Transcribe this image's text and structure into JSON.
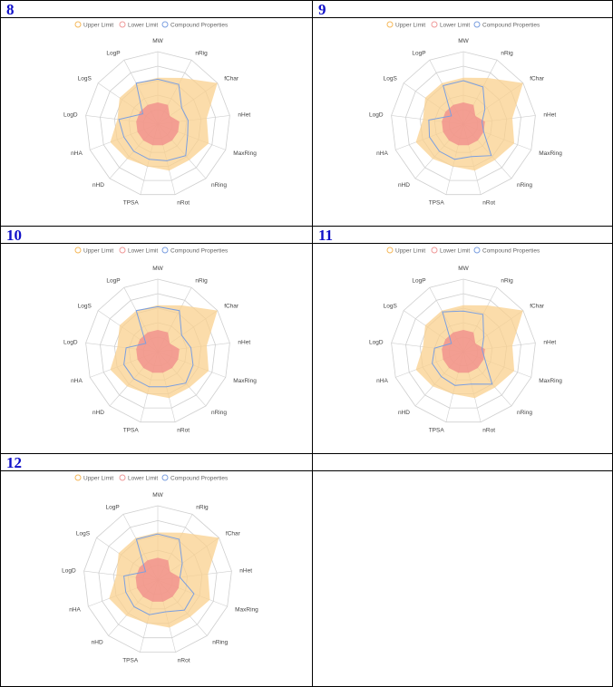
{
  "legend": {
    "upper": "Upper Limit",
    "lower": "Lower Limit",
    "compound": "Compound Properties"
  },
  "colors": {
    "upper_fill": "#f9d08e",
    "upper_stroke": "#f5b85a",
    "lower_fill": "#f08a8a",
    "lower_stroke": "#ef9a9a",
    "compound_stroke": "#7b9fe0",
    "grid": "#cfcfcf",
    "cell_number": "#1010c8"
  },
  "chart_data": [
    {
      "type": "radar",
      "label": "8",
      "axes": [
        "MW",
        "nRig",
        "fChar",
        "nHet",
        "MaxRing",
        "nRing",
        "nRot",
        "TPSA",
        "nHD",
        "nHA",
        "LogD",
        "LogS",
        "LogP"
      ],
      "series": [
        {
          "name": "Upper Limit",
          "values": [
            0.64,
            0.72,
            1.0,
            0.68,
            0.75,
            0.66,
            0.66,
            0.6,
            0.64,
            0.7,
            0.56,
            0.64,
            0.64
          ]
        },
        {
          "name": "Lower Limit",
          "values": [
            0.3,
            0.3,
            0.2,
            0.3,
            0.3,
            0.3,
            0.3,
            0.3,
            0.3,
            0.3,
            0.3,
            0.3,
            0.3
          ]
        },
        {
          "name": "Compound Properties",
          "values": [
            0.62,
            0.62,
            0.4,
            0.42,
            0.44,
            0.58,
            0.52,
            0.5,
            0.5,
            0.5,
            0.54,
            0.25,
            0.64
          ]
        }
      ]
    },
    {
      "type": "radar",
      "label": "9",
      "axes": [
        "MW",
        "nRig",
        "fChar",
        "nHet",
        "MaxRing",
        "nRing",
        "nRot",
        "TPSA",
        "nHD",
        "nHA",
        "LogD",
        "LogS",
        "LogP"
      ],
      "series": [
        {
          "name": "Upper Limit",
          "values": [
            0.64,
            0.72,
            1.0,
            0.68,
            0.75,
            0.66,
            0.66,
            0.6,
            0.64,
            0.7,
            0.56,
            0.64,
            0.64
          ]
        },
        {
          "name": "Lower Limit",
          "values": [
            0.3,
            0.3,
            0.2,
            0.3,
            0.3,
            0.3,
            0.3,
            0.3,
            0.3,
            0.3,
            0.3,
            0.3,
            0.3
          ]
        },
        {
          "name": "Compound Properties",
          "values": [
            0.6,
            0.58,
            0.36,
            0.26,
            0.3,
            0.58,
            0.46,
            0.5,
            0.5,
            0.5,
            0.48,
            0.2,
            0.6
          ]
        }
      ]
    },
    {
      "type": "radar",
      "label": "10",
      "axes": [
        "MW",
        "nRig",
        "fChar",
        "nHet",
        "MaxRing",
        "nRing",
        "nRot",
        "TPSA",
        "nHD",
        "nHA",
        "LogD",
        "LogS",
        "LogP"
      ],
      "series": [
        {
          "name": "Upper Limit",
          "values": [
            0.64,
            0.72,
            1.0,
            0.68,
            0.75,
            0.66,
            0.66,
            0.6,
            0.64,
            0.7,
            0.56,
            0.64,
            0.64
          ]
        },
        {
          "name": "Lower Limit",
          "values": [
            0.3,
            0.3,
            0.2,
            0.3,
            0.3,
            0.3,
            0.3,
            0.3,
            0.3,
            0.3,
            0.3,
            0.3,
            0.3
          ]
        },
        {
          "name": "Compound Properties",
          "values": [
            0.62,
            0.64,
            0.4,
            0.46,
            0.52,
            0.58,
            0.5,
            0.5,
            0.5,
            0.5,
            0.44,
            0.2,
            0.64
          ]
        }
      ]
    },
    {
      "type": "radar",
      "label": "11",
      "axes": [
        "MW",
        "nRig",
        "fChar",
        "nHet",
        "MaxRing",
        "nRing",
        "nRot",
        "TPSA",
        "nHD",
        "nHA",
        "LogD",
        "LogS",
        "LogP"
      ],
      "series": [
        {
          "name": "Upper Limit",
          "values": [
            0.64,
            0.72,
            1.0,
            0.68,
            0.75,
            0.66,
            0.66,
            0.6,
            0.64,
            0.7,
            0.56,
            0.64,
            0.64
          ]
        },
        {
          "name": "Lower Limit",
          "values": [
            0.3,
            0.3,
            0.2,
            0.3,
            0.3,
            0.3,
            0.3,
            0.3,
            0.3,
            0.3,
            0.3,
            0.3,
            0.3
          ]
        },
        {
          "name": "Compound Properties",
          "values": [
            0.56,
            0.58,
            0.34,
            0.26,
            0.32,
            0.6,
            0.46,
            0.48,
            0.46,
            0.46,
            0.4,
            0.2,
            0.62
          ]
        }
      ]
    },
    {
      "type": "radar",
      "label": "12",
      "axes": [
        "MW",
        "nRig",
        "fChar",
        "nHet",
        "MaxRing",
        "nRing",
        "nRot",
        "TPSA",
        "nHD",
        "nHA",
        "LogD",
        "LogS",
        "LogP"
      ],
      "series": [
        {
          "name": "Upper Limit",
          "values": [
            0.64,
            0.72,
            1.0,
            0.68,
            0.75,
            0.66,
            0.66,
            0.6,
            0.64,
            0.7,
            0.56,
            0.64,
            0.64
          ]
        },
        {
          "name": "Lower Limit",
          "values": [
            0.3,
            0.3,
            0.2,
            0.3,
            0.3,
            0.3,
            0.3,
            0.3,
            0.3,
            0.3,
            0.3,
            0.3,
            0.3
          ]
        },
        {
          "name": "Compound Properties",
          "values": [
            0.62,
            0.62,
            0.4,
            0.3,
            0.52,
            0.54,
            0.44,
            0.48,
            0.48,
            0.46,
            0.46,
            0.2,
            0.62
          ]
        }
      ]
    }
  ]
}
